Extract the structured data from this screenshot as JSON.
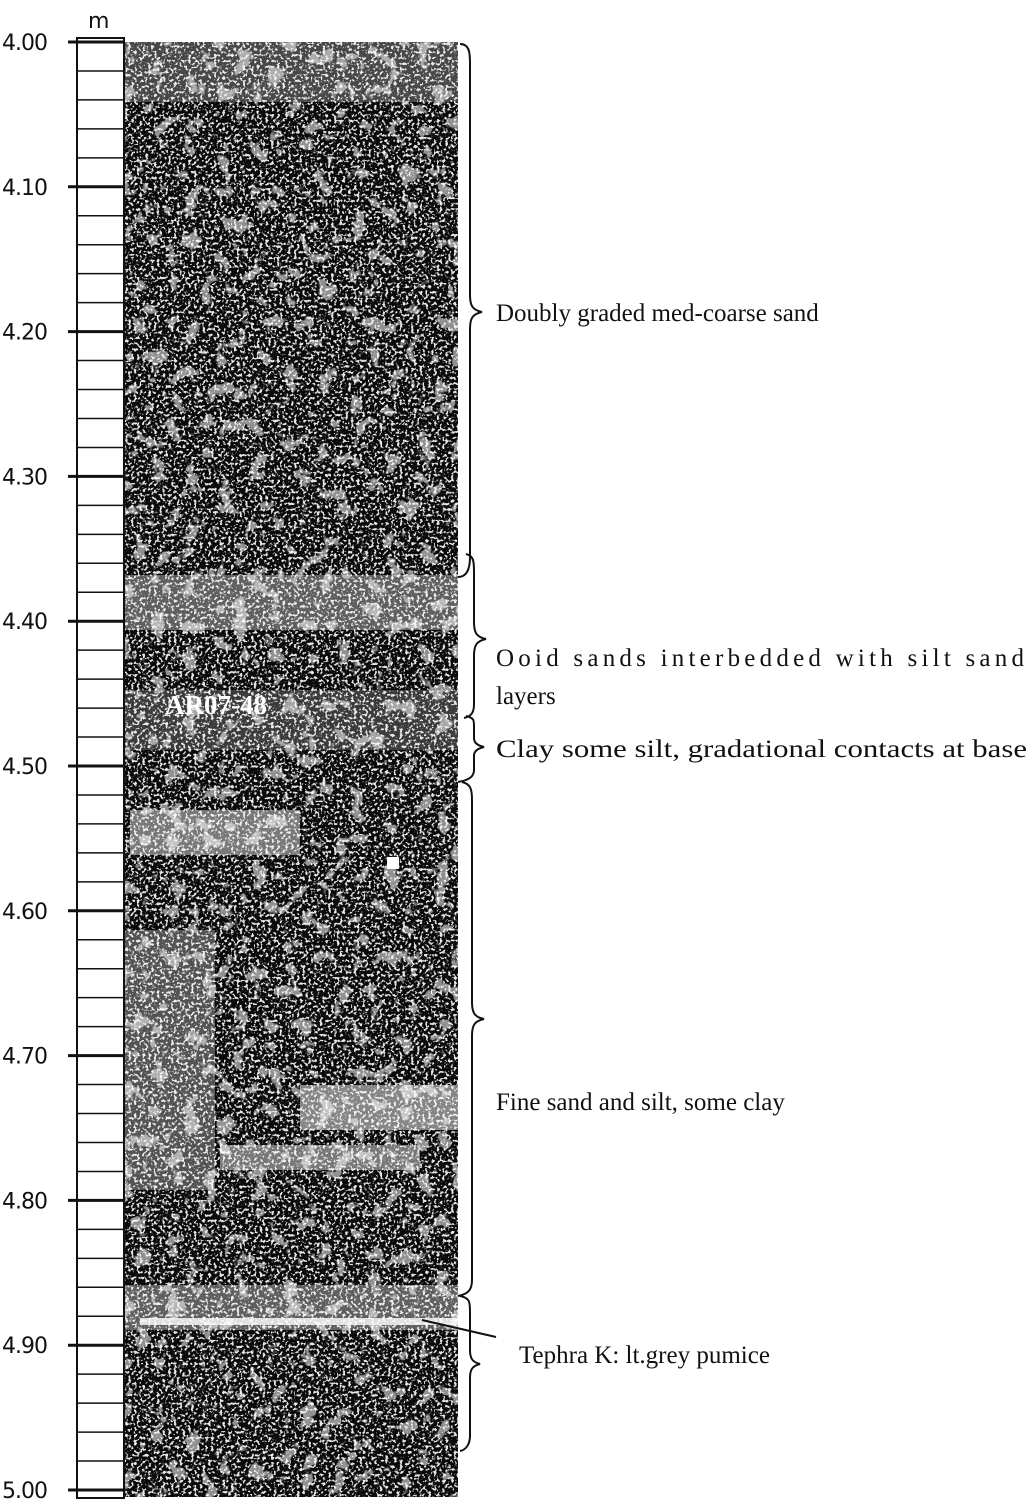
{
  "scale": {
    "unit": "m",
    "tick_labels": [
      "4.00",
      "4.10",
      "4.20",
      "4.30",
      "4.40",
      "4.50",
      "4.60",
      "4.70",
      "4.80",
      "4.90",
      "5.00"
    ]
  },
  "core": {
    "label": "AR07-48"
  },
  "units": [
    {
      "description": "Doubly graded med-coarse sand"
    },
    {
      "description_line1": "Ooid sands interbedded with silt sand",
      "description_line2": "layers"
    },
    {
      "description": "Clay some silt, gradational contacts at base"
    },
    {
      "description": "Fine sand and silt, some clay"
    },
    {
      "description": "Tephra K: lt.grey pumice"
    }
  ],
  "colors": {
    "core_dark": "#0a0a0a",
    "core_light": "#ffffff",
    "ink": "#111111"
  }
}
